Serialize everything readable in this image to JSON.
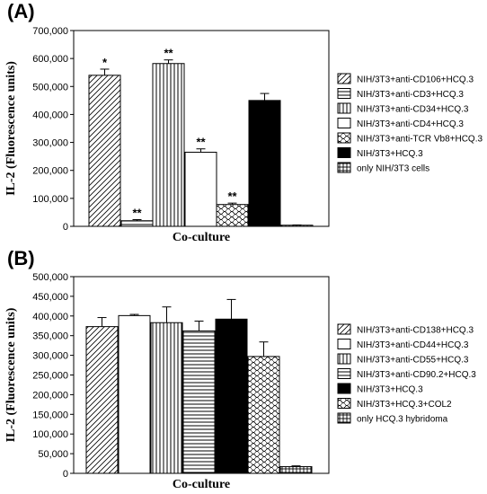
{
  "chart_data": [
    {
      "panel": "(A)",
      "type": "bar",
      "xlabel": "Co-culture",
      "ylabel": "IL-2 (Fluorescence units)",
      "ylim": [
        0,
        700000
      ],
      "yticks": [
        0,
        100000,
        200000,
        300000,
        400000,
        500000,
        600000,
        700000
      ],
      "ytick_labels": [
        "0",
        "100,000",
        "200,000",
        "300,000",
        "400,000",
        "500,000",
        "600,000",
        "700,000"
      ],
      "legend_position": "right",
      "bars": [
        {
          "name": "NIH/3T3+anti-CD106+HCQ.3",
          "value": 540000,
          "error": 22000,
          "pattern": "diag",
          "sig": "*"
        },
        {
          "name": "NIH/3T3+anti-CD3+HCQ.3",
          "value": 20000,
          "error": 4000,
          "pattern": "hlines",
          "sig": "**"
        },
        {
          "name": "NIH/3T3+anti-CD34+HCQ.3",
          "value": 582000,
          "error": 13000,
          "pattern": "vlines",
          "sig": "**"
        },
        {
          "name": "NIH/3T3+anti-CD4+HCQ.3",
          "value": 265000,
          "error": 12000,
          "pattern": "white",
          "sig": "**"
        },
        {
          "name": "NIH/3T3+anti-TCR Vb8+HCQ.3",
          "value": 78000,
          "error": 5000,
          "pattern": "scale",
          "sig": "**"
        },
        {
          "name": "NIH/3T3+HCQ.3",
          "value": 450000,
          "error": 25000,
          "pattern": "black",
          "sig": ""
        },
        {
          "name": "only NIH/3T3 cells",
          "value": 4000,
          "error": 1000,
          "pattern": "grid",
          "sig": ""
        }
      ]
    },
    {
      "panel": "(B)",
      "type": "bar",
      "xlabel": "Co-culture",
      "ylabel": "IL-2 (Fluorescence units)",
      "ylim": [
        0,
        500000
      ],
      "yticks": [
        0,
        50000,
        100000,
        150000,
        200000,
        250000,
        300000,
        350000,
        400000,
        450000,
        500000
      ],
      "ytick_labels": [
        "0",
        "50,000",
        "100,000",
        "150,000",
        "200,000",
        "250,000",
        "300,000",
        "350,000",
        "400,000",
        "450,000",
        "500,000"
      ],
      "legend_position": "right",
      "bars": [
        {
          "name": "NIH/3T3+anti-CD138+HCQ.3",
          "value": 373000,
          "error": 23000,
          "pattern": "diag",
          "sig": ""
        },
        {
          "name": "NIH/3T3+anti-CD44+HCQ.3",
          "value": 401000,
          "error": 3000,
          "pattern": "white",
          "sig": ""
        },
        {
          "name": "NIH/3T3+anti-CD55+HCQ.3",
          "value": 383000,
          "error": 40000,
          "pattern": "vlines",
          "sig": ""
        },
        {
          "name": "NIH/3T3+anti-CD90.2+HCQ.3",
          "value": 362000,
          "error": 25000,
          "pattern": "hlines",
          "sig": ""
        },
        {
          "name": "NIH/3T3+HCQ.3",
          "value": 392000,
          "error": 50000,
          "pattern": "black",
          "sig": ""
        },
        {
          "name": "NIH/3T3+HCQ.3+COL2",
          "value": 297000,
          "error": 37000,
          "pattern": "scale",
          "sig": ""
        },
        {
          "name": "only HCQ.3 hybridoma",
          "value": 17000,
          "error": 2000,
          "pattern": "grid",
          "sig": ""
        }
      ]
    }
  ]
}
